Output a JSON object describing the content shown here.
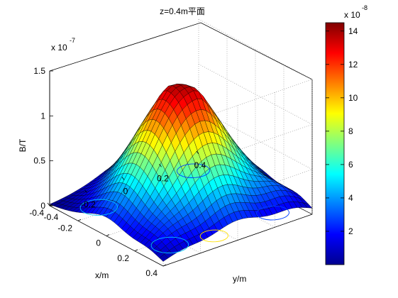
{
  "chart_data": {
    "type": "surface",
    "title": "z=0.4m平面",
    "xlabel": "x/m",
    "ylabel": "y/m",
    "zlabel": "B/T",
    "z_exponent_label": "x 10",
    "z_exponent": "-7",
    "x_ticks": [
      "-0.4",
      "-0.2",
      "0",
      "0.2",
      "0.4"
    ],
    "y_ticks": [
      "-0.4",
      "-0.2",
      "0",
      "0.2",
      "0.4"
    ],
    "z_ticks": [
      "0",
      "0.5",
      "1",
      "1.5"
    ],
    "x_range": [
      -0.4,
      0.4
    ],
    "y_range": [
      -0.4,
      0.4
    ],
    "z_range": [
      0,
      1.5
    ],
    "colormap": "jet",
    "grid": true,
    "peak_value": 1.45,
    "colorbar": {
      "exponent_label": "x 10",
      "exponent": "-8",
      "ticks": [
        "2",
        "4",
        "6",
        "8",
        "10",
        "12",
        "14"
      ],
      "range": [
        0,
        14.5
      ]
    }
  }
}
